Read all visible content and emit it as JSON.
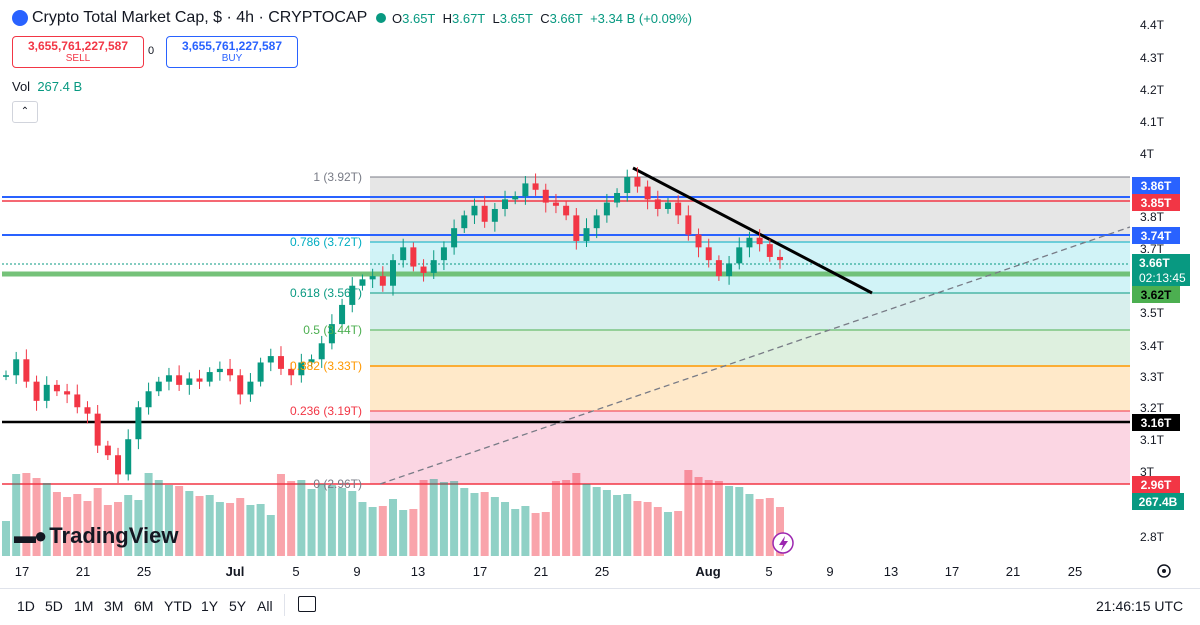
{
  "header": {
    "title": "Crypto Total Market Cap, $ · 4h · CRYPTOCAP",
    "ohlc": {
      "o_label": "O",
      "o": "3.65T",
      "h_label": "H",
      "h": "3.67T",
      "l_label": "L",
      "l": "3.65T",
      "c_label": "C",
      "c": "3.66T",
      "change": "+3.34 B (+0.09%)"
    }
  },
  "trade": {
    "sell_price": "3,655,761,227,587",
    "sell_label": "SELL",
    "spread": "0",
    "buy_price": "3,655,761,227,587",
    "buy_label": "BUY"
  },
  "volume": {
    "label": "Vol",
    "value": "267.4 B"
  },
  "price_axis": {
    "ticks": [
      "4.4T",
      "4.3T",
      "4.2T",
      "4.1T",
      "4T",
      "3.8T",
      "3.7T",
      "3.5T",
      "3.4T",
      "3.3T",
      "3.2T",
      "3.1T",
      "3T",
      "2.8T"
    ]
  },
  "price_labels": [
    {
      "text": "3.86T",
      "color": "#2962ff"
    },
    {
      "text": "3.85T",
      "color": "#f23645"
    },
    {
      "text": "3.74T",
      "color": "#2962ff"
    },
    {
      "text": "3.66T",
      "color": "#089981"
    },
    {
      "text": "02:13:45",
      "color": "#089981"
    },
    {
      "text": "3.62T",
      "color": "#4caf50"
    },
    {
      "text": "3.16T",
      "color": "#000000"
    },
    {
      "text": "2.96T",
      "color": "#f23645"
    },
    {
      "text": "267.4B",
      "color": "#089981"
    }
  ],
  "fib_labels": [
    "1 (3.92T)",
    "0.786 (3.72T)",
    "0.618 (3.56T)",
    "0.5 (3.44T)",
    "0.382 (3.33T)",
    "0.236 (3.19T)",
    "0 (2.96T)"
  ],
  "time_axis": {
    "ticks": [
      "17",
      "21",
      "25",
      "Jul",
      "5",
      "9",
      "13",
      "17",
      "21",
      "25",
      "Aug",
      "5",
      "9",
      "13",
      "17",
      "21",
      "25"
    ]
  },
  "timeframes": [
    "1D",
    "5D",
    "1M",
    "3M",
    "6M",
    "YTD",
    "1Y",
    "5Y",
    "All"
  ],
  "clock": "21:46:15 UTC",
  "branding": "TradingView",
  "colors": {
    "up": "#089981",
    "down": "#f23645",
    "blue": "#2962ff"
  },
  "chart_data": {
    "type": "candlestick",
    "series": [
      {
        "name": "TOTAL",
        "values": [
          3.3,
          3.35,
          3.28,
          3.22,
          3.27,
          3.25,
          3.24,
          3.2,
          3.18,
          3.08,
          3.05,
          2.99,
          3.1,
          3.2,
          3.25,
          3.28,
          3.3,
          3.27,
          3.29,
          3.28,
          3.31,
          3.32,
          3.3,
          3.24,
          3.28,
          3.34,
          3.36,
          3.32,
          3.3,
          3.34,
          3.35,
          3.4,
          3.46,
          3.52,
          3.58,
          3.6,
          3.61,
          3.58,
          3.66,
          3.7,
          3.64,
          3.62,
          3.66,
          3.7,
          3.76,
          3.8,
          3.83,
          3.78,
          3.82,
          3.85,
          3.86,
          3.9,
          3.88,
          3.84,
          3.83,
          3.8,
          3.72,
          3.76,
          3.8,
          3.84,
          3.87,
          3.92,
          3.89,
          3.85,
          3.82,
          3.84,
          3.8,
          3.74,
          3.7,
          3.66,
          3.61,
          3.65,
          3.7,
          3.73,
          3.71,
          3.67,
          3.66
        ]
      }
    ],
    "fib_levels": [
      3.92,
      3.72,
      3.56,
      3.44,
      3.33,
      3.19,
      2.96
    ],
    "horizontal_lines": [
      3.86,
      3.85,
      3.74,
      3.62,
      3.16,
      2.96
    ],
    "current_price": 3.66
  }
}
